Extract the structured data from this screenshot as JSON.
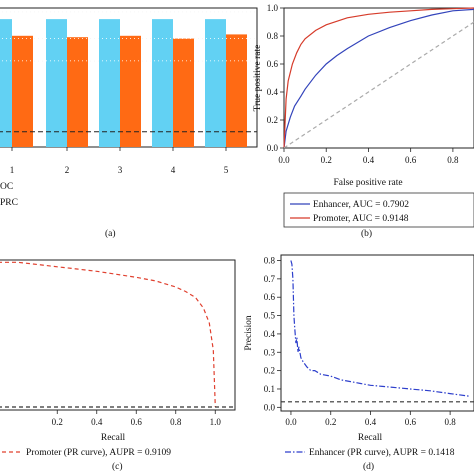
{
  "chart_data": [
    {
      "id": "a",
      "type": "bar",
      "panel_label": "(a)",
      "categories": [
        "1",
        "2",
        "3",
        "4",
        "5"
      ],
      "series": [
        {
          "name": "",
          "partial_legend_text": "OC",
          "color": "#62d1f3",
          "values": [
            0.92,
            0.92,
            0.92,
            0.92,
            0.92
          ]
        },
        {
          "name": "",
          "partial_legend_text": "PRC",
          "color": "#ff6a14",
          "values": [
            0.8,
            0.79,
            0.8,
            0.78,
            0.81
          ]
        }
      ],
      "baseline": 0.11,
      "gridlines": [
        0.62,
        0.78,
        0.97
      ],
      "grid": "dotted-white"
    },
    {
      "id": "b",
      "type": "line",
      "panel_label": "(b)",
      "xlabel": "False positive rate",
      "ylabel": "True positive rate",
      "xlim": [
        0,
        0.9
      ],
      "ylim": [
        0,
        1
      ],
      "xticks": [
        "0.0",
        "0.2",
        "0.4",
        "0.6",
        "0.8"
      ],
      "yticks": [
        "0.0",
        "0.2",
        "0.4",
        "0.6",
        "0.8",
        "1.0"
      ],
      "series": [
        {
          "name": "Enhancer, AUC = 0.7902",
          "color": "#3344bb",
          "style": "solid",
          "x": [
            0,
            0.01,
            0.03,
            0.05,
            0.08,
            0.1,
            0.15,
            0.2,
            0.25,
            0.3,
            0.4,
            0.5,
            0.6,
            0.7,
            0.8,
            0.9
          ],
          "y": [
            0,
            0.12,
            0.22,
            0.3,
            0.37,
            0.42,
            0.52,
            0.6,
            0.66,
            0.71,
            0.8,
            0.86,
            0.91,
            0.95,
            0.98,
            0.99
          ]
        },
        {
          "name": "Promoter, AUC = 0.9148",
          "color": "#d63b2a",
          "style": "solid",
          "x": [
            0,
            0.01,
            0.02,
            0.04,
            0.06,
            0.08,
            0.1,
            0.15,
            0.2,
            0.3,
            0.4,
            0.5,
            0.6,
            0.7,
            0.8,
            0.9
          ],
          "y": [
            0,
            0.35,
            0.48,
            0.6,
            0.68,
            0.74,
            0.78,
            0.84,
            0.88,
            0.93,
            0.955,
            0.97,
            0.98,
            0.99,
            0.995,
            1.0
          ]
        },
        {
          "name": "",
          "color": "#aaaaaa",
          "style": "dashed",
          "x": [
            0,
            0.9
          ],
          "y": [
            0,
            0.9
          ]
        }
      ],
      "legend": "bottom"
    },
    {
      "id": "c",
      "type": "line",
      "panel_label": "(c)",
      "xlabel": "Recall",
      "xlim": [
        -0.1,
        1.1
      ],
      "ylim": [
        0,
        1
      ],
      "xticks": [
        "0.2",
        "0.4",
        "0.6",
        "0.8",
        "1.0"
      ],
      "series": [
        {
          "name": "Promoter (PR curve), AUPR = 0.9109",
          "color": "#e0402f",
          "style": "dashed",
          "x": [
            -0.1,
            0.0,
            0.1,
            0.2,
            0.3,
            0.4,
            0.5,
            0.6,
            0.7,
            0.8,
            0.85,
            0.9,
            0.94,
            0.97,
            0.99,
            1.0
          ],
          "y": [
            0.985,
            0.985,
            0.97,
            0.955,
            0.94,
            0.925,
            0.905,
            0.885,
            0.86,
            0.82,
            0.79,
            0.75,
            0.68,
            0.58,
            0.4,
            0.02
          ]
        },
        {
          "name": "",
          "color": "#333333",
          "style": "dashed",
          "x": [
            -0.1,
            1.1
          ],
          "y": [
            0.02,
            0.02
          ]
        }
      ],
      "legend": "bottom"
    },
    {
      "id": "d",
      "type": "line",
      "panel_label": "(d)",
      "xlabel": "Recall",
      "ylabel": "Precision",
      "xlim": [
        -0.05,
        0.92
      ],
      "ylim": [
        -0.02,
        0.83
      ],
      "xticks": [
        "0.0",
        "0.2",
        "0.4",
        "0.6",
        "0.8"
      ],
      "yticks": [
        "0.0",
        "0.1",
        "0.2",
        "0.3",
        "0.4",
        "0.5",
        "0.6",
        "0.7",
        "0.8"
      ],
      "series": [
        {
          "name": "Enhancer (PR curve), AUPR = 0.1418",
          "color": "#2d3fcc",
          "style": "dashdot",
          "x": [
            0.0,
            0.005,
            0.01,
            0.012,
            0.015,
            0.02,
            0.025,
            0.03,
            0.035,
            0.04,
            0.05,
            0.06,
            0.08,
            0.1,
            0.12,
            0.15,
            0.2,
            0.25,
            0.3,
            0.35,
            0.4,
            0.5,
            0.6,
            0.7,
            0.8,
            0.9
          ],
          "y": [
            0.8,
            0.78,
            0.7,
            0.62,
            0.5,
            0.42,
            0.35,
            0.38,
            0.3,
            0.33,
            0.27,
            0.25,
            0.22,
            0.2,
            0.2,
            0.18,
            0.17,
            0.15,
            0.14,
            0.13,
            0.12,
            0.11,
            0.1,
            0.09,
            0.075,
            0.06
          ]
        },
        {
          "name": "",
          "color": "#333333",
          "style": "dashed",
          "x": [
            -0.05,
            0.92
          ],
          "y": [
            0.03,
            0.03
          ]
        }
      ],
      "legend": "bottom"
    }
  ]
}
